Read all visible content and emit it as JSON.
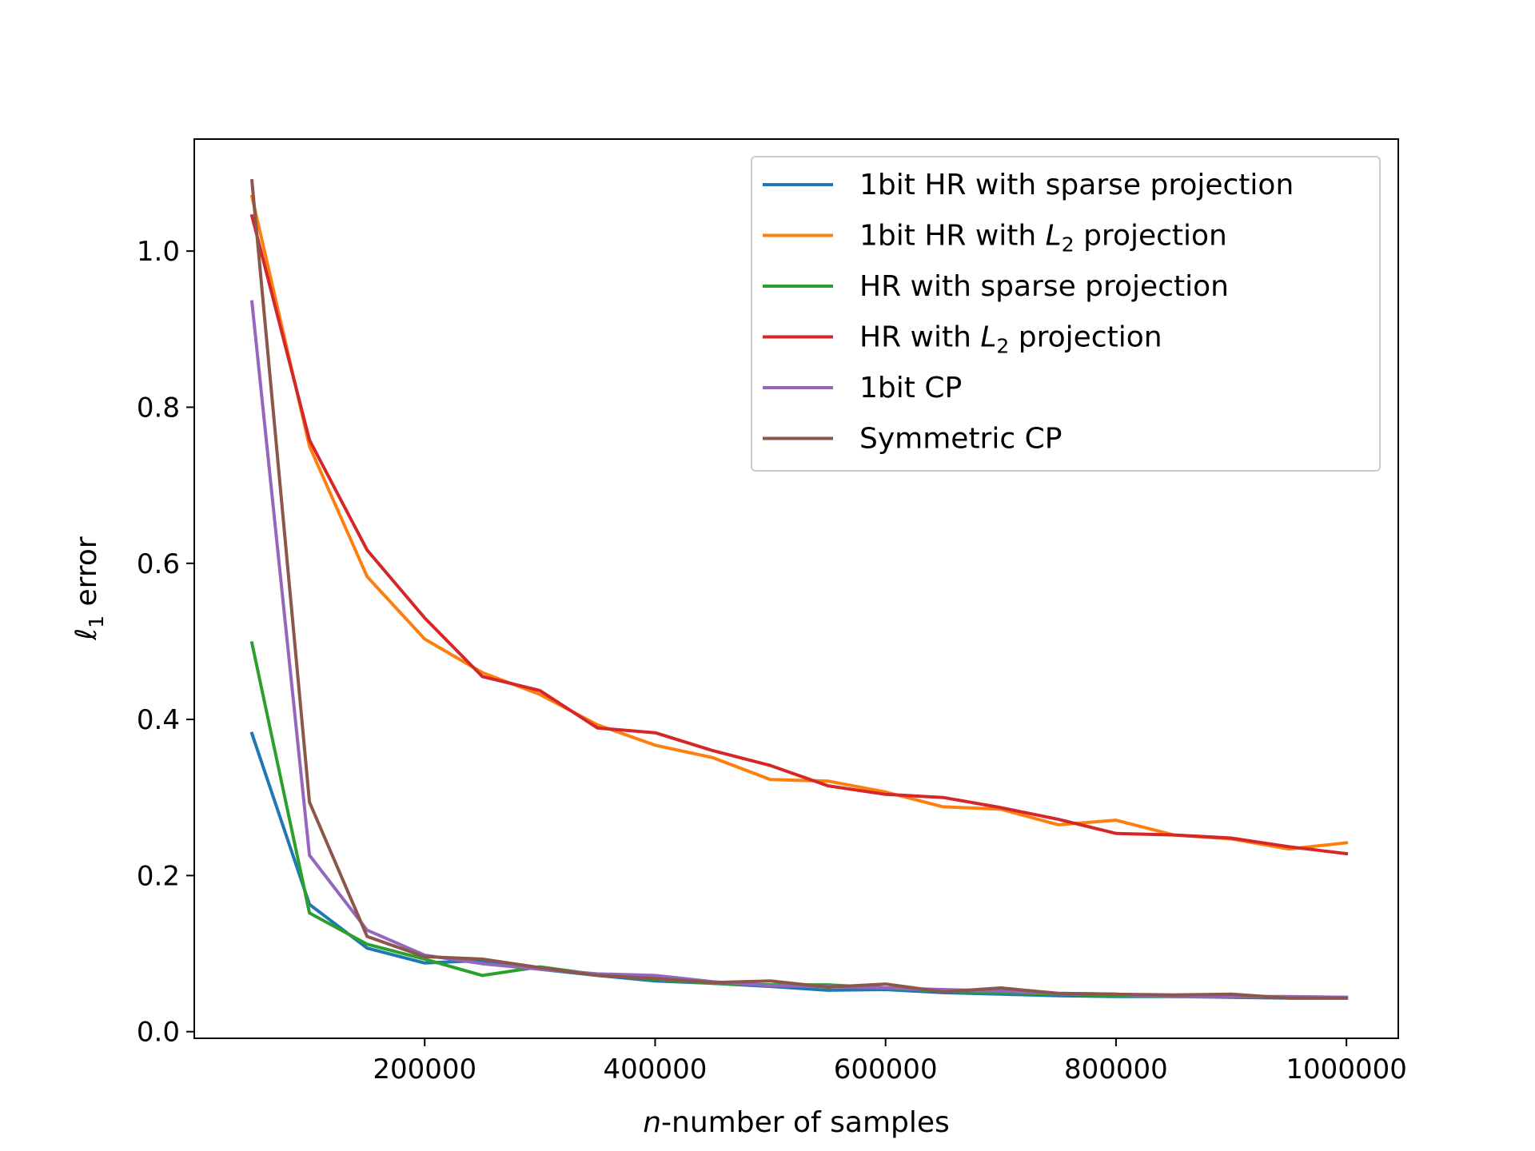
{
  "chart_data": {
    "type": "line",
    "title": "",
    "xlabel": {
      "italic": "n",
      "rest": "-number of samples"
    },
    "ylabel": {
      "symbol": "ℓ",
      "sub": "1",
      "rest": " error"
    },
    "xlim": [
      0,
      1045000
    ],
    "ylim": [
      -0.0085,
      1.1435
    ],
    "xticks": [
      200000,
      400000,
      600000,
      800000,
      1000000
    ],
    "xtick_labels": [
      "200000",
      "400000",
      "600000",
      "800000",
      "1000000"
    ],
    "yticks": [
      0.0,
      0.2,
      0.4,
      0.6,
      0.8,
      1.0
    ],
    "ytick_labels": [
      "0.0",
      "0.2",
      "0.4",
      "0.6",
      "0.8",
      "1.0"
    ],
    "legend_position": "top-right",
    "x": [
      50000,
      100000,
      150000,
      200000,
      250000,
      300000,
      350000,
      400000,
      450000,
      500000,
      550000,
      600000,
      650000,
      700000,
      750000,
      800000,
      850000,
      900000,
      950000,
      1000000
    ],
    "series": [
      {
        "name": "1bit HR with sparse projection",
        "label_parts": [
          "1bit HR with sparse projection"
        ],
        "color": "#1f77b4",
        "values": [
          0.382,
          0.163,
          0.107,
          0.088,
          0.091,
          0.08,
          0.072,
          0.065,
          0.062,
          0.058,
          0.053,
          0.054,
          0.05,
          0.048,
          0.046,
          0.045,
          0.045,
          0.044,
          0.043,
          0.043
        ]
      },
      {
        "name": "1bit HR with L2 projection",
        "label_parts": [
          "1bit HR with ",
          "L",
          "2",
          " projection"
        ],
        "color": "#ff7f0e",
        "values": [
          1.07,
          0.75,
          0.583,
          0.503,
          0.46,
          0.432,
          0.393,
          0.367,
          0.351,
          0.323,
          0.321,
          0.307,
          0.288,
          0.285,
          0.265,
          0.271,
          0.252,
          0.247,
          0.234,
          0.242
        ]
      },
      {
        "name": "HR with sparse projection",
        "label_parts": [
          "HR with sparse projection"
        ],
        "color": "#2ca02c",
        "values": [
          0.498,
          0.152,
          0.112,
          0.093,
          0.072,
          0.083,
          0.073,
          0.067,
          0.062,
          0.06,
          0.06,
          0.056,
          0.052,
          0.05,
          0.048,
          0.046,
          0.045,
          0.045,
          0.044,
          0.044
        ]
      },
      {
        "name": "HR with L2 projection",
        "label_parts": [
          "HR with ",
          "L",
          "2",
          " projection"
        ],
        "color": "#d62728",
        "values": [
          1.045,
          0.758,
          0.617,
          0.53,
          0.455,
          0.437,
          0.389,
          0.383,
          0.36,
          0.341,
          0.315,
          0.304,
          0.3,
          0.287,
          0.272,
          0.254,
          0.252,
          0.248,
          0.237,
          0.228
        ]
      },
      {
        "name": "1bit CP",
        "label_parts": [
          "1bit CP"
        ],
        "color": "#9467bd",
        "values": [
          0.935,
          0.226,
          0.13,
          0.098,
          0.087,
          0.08,
          0.074,
          0.072,
          0.064,
          0.059,
          0.058,
          0.056,
          0.054,
          0.052,
          0.049,
          0.048,
          0.045,
          0.045,
          0.045,
          0.044
        ]
      },
      {
        "name": "Symmetric CP",
        "label_parts": [
          "Symmetric CP"
        ],
        "color": "#8c564b",
        "values": [
          1.09,
          0.294,
          0.122,
          0.096,
          0.093,
          0.082,
          0.072,
          0.068,
          0.063,
          0.065,
          0.057,
          0.061,
          0.051,
          0.056,
          0.049,
          0.048,
          0.047,
          0.048,
          0.043,
          0.043
        ]
      }
    ]
  }
}
